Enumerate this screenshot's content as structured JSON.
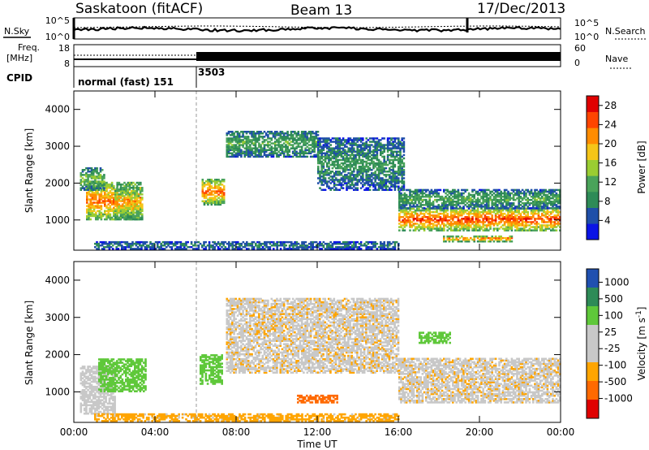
{
  "header": {
    "station": "Saskatoon (fitACF)",
    "beam": "Beam 13",
    "date": "17/Dec/2013"
  },
  "noise_panel": {
    "left_label": "N.Sky",
    "left_ticks": [
      "10^5",
      "10^0"
    ],
    "right_ticks": [
      "10^5",
      "10^0"
    ],
    "right_label": "N.Search"
  },
  "freq_panel": {
    "left_label_1": "Freq.",
    "left_label_2": "[MHz]",
    "left_ticks": [
      "18",
      "8"
    ],
    "right_ticks": [
      "60",
      "0"
    ],
    "right_label": "Nave"
  },
  "cpid": {
    "label": "CPID",
    "segments": [
      {
        "label": "normal (fast) 151",
        "start_hour": 0
      },
      {
        "label": "3503",
        "start_hour": 6.0
      }
    ]
  },
  "colors": {
    "power_scale": [
      "#0a14e6",
      "#1f4fa8",
      "#2e8b57",
      "#4aa35a",
      "#9acd32",
      "#f5c518",
      "#ff8c00",
      "#ff4500",
      "#e00000"
    ],
    "velocity_scale": [
      "#e00000",
      "#ff6a00",
      "#ffa500",
      "#c8c8c8",
      "#c8c8c8",
      "#5fc83a",
      "#2e8b57",
      "#2050b0"
    ]
  },
  "chart_data": [
    {
      "type": "heatmap",
      "title": "",
      "xlabel": "Time UT",
      "ylabel": "Slant Range [km]",
      "x_tick_labels": [
        "00:00",
        "04:00",
        "08:00",
        "12:00",
        "16:00",
        "20:00",
        "00:00"
      ],
      "x_range_hours": [
        0,
        24
      ],
      "ylim": [
        180,
        4500
      ],
      "y_tick_labels": [
        "1000",
        "2000",
        "3000",
        "4000"
      ],
      "colorbar": {
        "label": "Power [dB]",
        "tick_labels": [
          "4",
          "8",
          "12",
          "16",
          "20",
          "24",
          "28"
        ],
        "range": [
          0,
          30
        ]
      },
      "series": [
        {
          "start_hour": 0.6,
          "end_hour": 3.3,
          "range_start_km": 1000,
          "range_end_km": 2000,
          "level_db": 24
        },
        {
          "start_hour": 0.3,
          "end_hour": 1.5,
          "range_start_km": 1800,
          "range_end_km": 2400,
          "level_db": 14
        },
        {
          "start_hour": 2.0,
          "end_hour": 3.4,
          "range_start_km": 1000,
          "range_end_km": 1900,
          "level_db": 20
        },
        {
          "start_hour": 6.3,
          "end_hour": 7.4,
          "range_start_km": 1400,
          "range_end_km": 2100,
          "level_db": 24
        },
        {
          "start_hour": 7.5,
          "end_hour": 12.0,
          "range_start_km": 2700,
          "range_end_km": 3400,
          "level_db": 12
        },
        {
          "start_hour": 12.0,
          "end_hour": 16.3,
          "range_start_km": 1800,
          "range_end_km": 3200,
          "level_db": 10
        },
        {
          "start_hour": 16.0,
          "end_hour": 24.0,
          "range_start_km": 700,
          "range_end_km": 1300,
          "level_db": 26
        },
        {
          "start_hour": 16.0,
          "end_hour": 24.0,
          "range_start_km": 1300,
          "range_end_km": 1800,
          "level_db": 12
        },
        {
          "start_hour": 18.2,
          "end_hour": 21.6,
          "range_start_km": 400,
          "range_end_km": 550,
          "level_db": 24
        },
        {
          "start_hour": 1.0,
          "end_hour": 16.0,
          "range_start_km": 200,
          "range_end_km": 400,
          "level_db": 8
        }
      ]
    },
    {
      "type": "heatmap",
      "title": "",
      "xlabel": "Time UT",
      "ylabel": "Slant Range [km]",
      "x_tick_labels": [
        "00:00",
        "04:00",
        "08:00",
        "12:00",
        "16:00",
        "20:00",
        "00:00"
      ],
      "x_range_hours": [
        0,
        24
      ],
      "ylim": [
        180,
        4500
      ],
      "y_tick_labels": [
        "1000",
        "2000",
        "3000",
        "4000"
      ],
      "colorbar": {
        "label": "Velocity [m s^-1]",
        "tick_labels": [
          "1000",
          "500",
          "100",
          "25",
          "-25",
          "-100",
          "-500",
          "-1000"
        ]
      },
      "series": [
        {
          "start_hour": 0.3,
          "end_hour": 2.0,
          "range_start_km": 400,
          "range_end_km": 1700,
          "velocity_ms": 25
        },
        {
          "start_hour": 1.2,
          "end_hour": 3.5,
          "range_start_km": 1000,
          "range_end_km": 1900,
          "velocity_ms": 300
        },
        {
          "start_hour": 6.2,
          "end_hour": 7.3,
          "range_start_km": 1200,
          "range_end_km": 2000,
          "velocity_ms": 400
        },
        {
          "start_hour": 7.5,
          "end_hour": 16.0,
          "range_start_km": 1500,
          "range_end_km": 3500,
          "velocity_ms": 0
        },
        {
          "start_hour": 11.0,
          "end_hour": 13.0,
          "range_start_km": 700,
          "range_end_km": 900,
          "velocity_ms": -150
        },
        {
          "start_hour": 16.0,
          "end_hour": 24.0,
          "range_start_km": 700,
          "range_end_km": 1900,
          "velocity_ms": 0
        },
        {
          "start_hour": 17.0,
          "end_hour": 18.5,
          "range_start_km": 2300,
          "range_end_km": 2600,
          "velocity_ms": 300
        },
        {
          "start_hour": 1.0,
          "end_hour": 16.0,
          "range_start_km": 200,
          "range_end_km": 400,
          "velocity_ms": -60
        }
      ]
    }
  ]
}
